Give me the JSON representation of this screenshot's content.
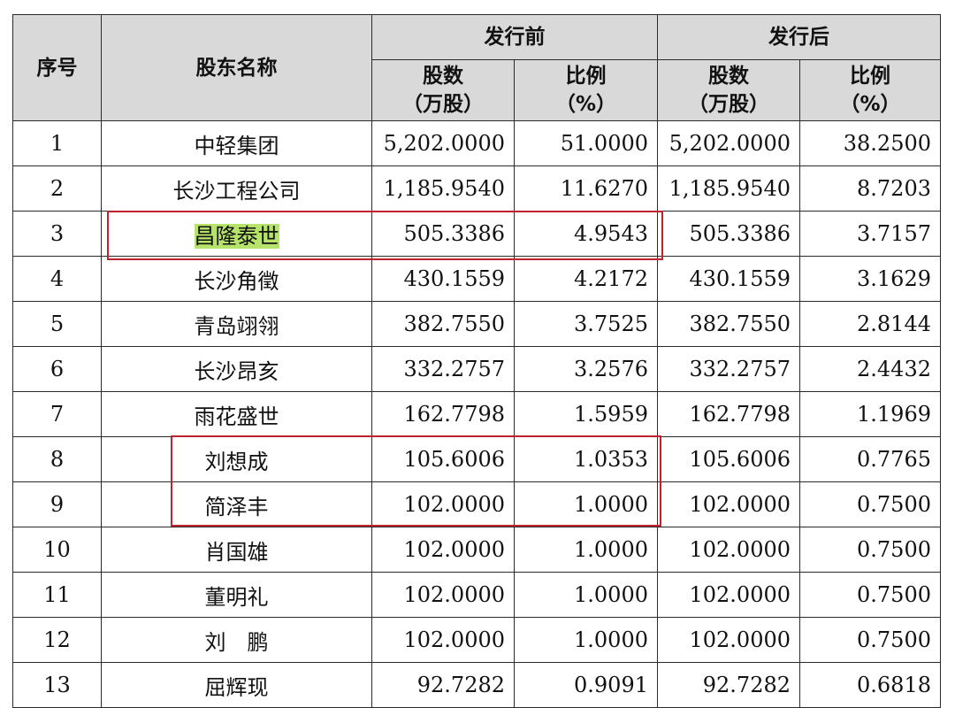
{
  "headers": {
    "index": "序号",
    "name": "股东名称",
    "before_group": "发行前",
    "after_group": "发行后",
    "shares_line1": "股数",
    "shares_line2": "（万股）",
    "ratio_line1": "比例",
    "ratio_line2": "（%）"
  },
  "rows": [
    {
      "idx": "1",
      "name": "中轻集团",
      "before_shares": "5,202.0000",
      "before_ratio": "51.0000",
      "after_shares": "5,202.0000",
      "after_ratio": "38.2500"
    },
    {
      "idx": "2",
      "name": "长沙工程公司",
      "before_shares": "1,185.9540",
      "before_ratio": "11.6270",
      "after_shares": "1,185.9540",
      "after_ratio": "8.7203"
    },
    {
      "idx": "3",
      "name": "昌隆泰世",
      "before_shares": "505.3386",
      "before_ratio": "4.9543",
      "after_shares": "505.3386",
      "after_ratio": "3.7157"
    },
    {
      "idx": "4",
      "name": "长沙角徵",
      "before_shares": "430.1559",
      "before_ratio": "4.2172",
      "after_shares": "430.1559",
      "after_ratio": "3.1629"
    },
    {
      "idx": "5",
      "name": "青岛翊翎",
      "before_shares": "382.7550",
      "before_ratio": "3.7525",
      "after_shares": "382.7550",
      "after_ratio": "2.8144"
    },
    {
      "idx": "6",
      "name": "长沙昂亥",
      "before_shares": "332.2757",
      "before_ratio": "3.2576",
      "after_shares": "332.2757",
      "after_ratio": "2.4432"
    },
    {
      "idx": "7",
      "name": "雨花盛世",
      "before_shares": "162.7798",
      "before_ratio": "1.5959",
      "after_shares": "162.7798",
      "after_ratio": "1.1969"
    },
    {
      "idx": "8",
      "name": "刘想成",
      "before_shares": "105.6006",
      "before_ratio": "1.0353",
      "after_shares": "105.6006",
      "after_ratio": "0.7765"
    },
    {
      "idx": "9",
      "name": "简泽丰",
      "before_shares": "102.0000",
      "before_ratio": "1.0000",
      "after_shares": "102.0000",
      "after_ratio": "0.7500"
    },
    {
      "idx": "10",
      "name": "肖国雄",
      "before_shares": "102.0000",
      "before_ratio": "1.0000",
      "after_shares": "102.0000",
      "after_ratio": "0.7500"
    },
    {
      "idx": "11",
      "name": "董明礼",
      "before_shares": "102.0000",
      "before_ratio": "1.0000",
      "after_shares": "102.0000",
      "after_ratio": "0.7500"
    },
    {
      "idx": "12",
      "name": "刘　鹏",
      "before_shares": "102.0000",
      "before_ratio": "1.0000",
      "after_shares": "102.0000",
      "after_ratio": "0.7500"
    },
    {
      "idx": "13",
      "name": "屈辉现",
      "before_shares": "92.7282",
      "before_ratio": "0.9091",
      "after_shares": "92.7282",
      "after_ratio": "0.6818"
    }
  ],
  "highlighted_row_index": 2,
  "highlight_color": "#b6e36a",
  "annotation_box_color": "#c0222e"
}
